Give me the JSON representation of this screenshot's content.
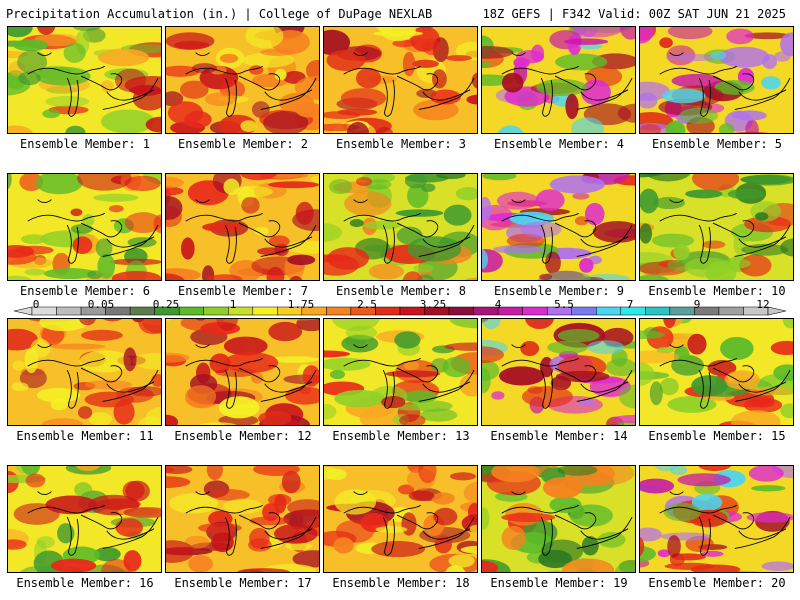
{
  "header": {
    "title": "Precipitation Accumulation (in.) | College of DuPage NEXLAB",
    "run_info": "18Z GEFS | F342 Valid: 00Z SAT JUN 21 2025"
  },
  "colorbar": {
    "tick_labels": [
      "0",
      "0.05",
      "0.25",
      "1",
      "1.75",
      "2.5",
      "3.25",
      "4",
      "5.5",
      "7",
      "9",
      "12"
    ],
    "colors": [
      "#dcdcdc",
      "#bdbdbd",
      "#9a9a9a",
      "#787878",
      "#5e7d4a",
      "#3e9a2e",
      "#5dbb2a",
      "#8fd028",
      "#c8e028",
      "#f3f026",
      "#f7cd26",
      "#f8a823",
      "#f6811f",
      "#ef571b",
      "#e12c18",
      "#c8141a",
      "#a50f24",
      "#8c0d3c",
      "#a8127a",
      "#c81aa8",
      "#df2ad0",
      "#b070f0",
      "#7a7af0",
      "#4ad5f0",
      "#2aeaea",
      "#2ac6c6",
      "#5aa0a0",
      "#7a7a7a",
      "#a0a0a0",
      "#c8c8c8"
    ]
  },
  "panels": [
    {
      "label": "Ensemble Member: 1",
      "theme": "mixed"
    },
    {
      "label": "Ensemble Member: 2",
      "theme": "red"
    },
    {
      "label": "Ensemble Member: 3",
      "theme": "red"
    },
    {
      "label": "Ensemble Member: 4",
      "theme": "magenta"
    },
    {
      "label": "Ensemble Member: 5",
      "theme": "magenta"
    },
    {
      "label": "Ensemble Member: 6",
      "theme": "mixed"
    },
    {
      "label": "Ensemble Member: 7",
      "theme": "red"
    },
    {
      "label": "Ensemble Member: 8",
      "theme": "green"
    },
    {
      "label": "Ensemble Member: 9",
      "theme": "magenta"
    },
    {
      "label": "Ensemble Member: 10",
      "theme": "green"
    },
    {
      "label": "Ensemble Member: 11",
      "theme": "red"
    },
    {
      "label": "Ensemble Member: 12",
      "theme": "red"
    },
    {
      "label": "Ensemble Member: 13",
      "theme": "mixed"
    },
    {
      "label": "Ensemble Member: 14",
      "theme": "magenta"
    },
    {
      "label": "Ensemble Member: 15",
      "theme": "mixed"
    },
    {
      "label": "Ensemble Member: 16",
      "theme": "mixed"
    },
    {
      "label": "Ensemble Member: 17",
      "theme": "red"
    },
    {
      "label": "Ensemble Member: 18",
      "theme": "red"
    },
    {
      "label": "Ensemble Member: 19",
      "theme": "green"
    },
    {
      "label": "Ensemble Member: 20",
      "theme": "magenta"
    }
  ]
}
